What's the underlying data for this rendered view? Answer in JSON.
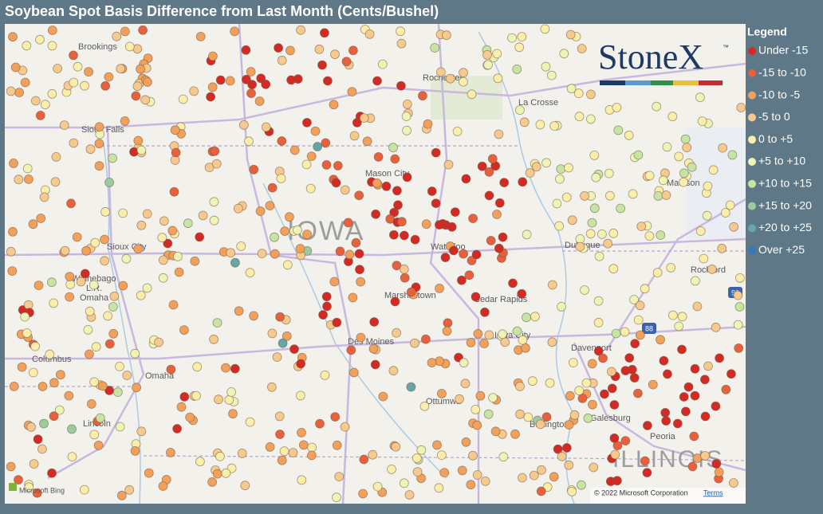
{
  "header": {
    "title": "Soybean Spot Basis Difference from Last Month (Cents/Bushel)"
  },
  "legend": {
    "title": "Legend",
    "items": [
      {
        "label": "Under -15",
        "color": "#d42a24"
      },
      {
        "label": "-15 to -10",
        "color": "#e8603c"
      },
      {
        "label": "-10 to -5",
        "color": "#f2a05a"
      },
      {
        "label": "-5 to 0",
        "color": "#f8c98c"
      },
      {
        "label": "0 to +5",
        "color": "#fbeea8"
      },
      {
        "label": "+5 to +10",
        "color": "#eef4b4"
      },
      {
        "label": "+10 to +15",
        "color": "#c6e4a2"
      },
      {
        "label": "+15 to +20",
        "color": "#9ccb9c"
      },
      {
        "label": "+20 to +25",
        "color": "#64a7a6"
      },
      {
        "label": "Over +25",
        "color": "#3579b8"
      }
    ]
  },
  "logo": {
    "name": "StoneX",
    "mark": "™"
  },
  "map": {
    "labels": [
      "Brookings",
      "Rochester",
      "La Crosse",
      "Sioux Falls",
      "Mason City",
      "Madison",
      "IOWA",
      "Sioux City",
      "Waterloo",
      "Dubuque",
      "Winnebago",
      "L.R.",
      "Omaha",
      "Marshalltown",
      "Cedar Rapids",
      "Rockford",
      "Columbus",
      "Des Moines",
      "Iowa City",
      "Davenport",
      "Omaha",
      "Ottumwa",
      "Lincoln",
      "Burlington",
      "Galesburg",
      "Peoria",
      "ILLINOIS",
      "90",
      "88"
    ],
    "provider": "Microsoft Bing",
    "attribution": "© 2022 Microsoft Corporation",
    "terms": "Terms"
  }
}
